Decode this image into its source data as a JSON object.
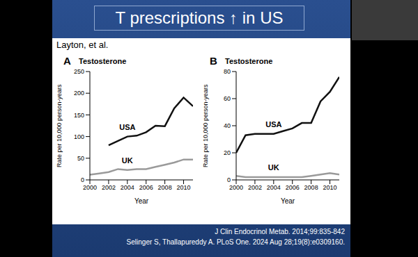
{
  "slide": {
    "title": "T prescriptions ↑ in US",
    "author": "Layton, et al.",
    "citations": [
      "J Clin Endocrinol Metab. 2014;99:835-842",
      "Selinger S, Thallapureddy A. PLoS One. 2024 Aug 28;19(8):e0309160."
    ]
  },
  "chart_data": [
    {
      "type": "line",
      "panel": "A",
      "title": "Testosterone",
      "x_label": "Year",
      "y_label": "Rate per 10,000 person-years",
      "x": [
        2000,
        2001,
        2002,
        2003,
        2004,
        2005,
        2006,
        2007,
        2008,
        2009,
        2010,
        2011
      ],
      "series": [
        {
          "name": "USA",
          "color": "#111111",
          "values": [
            null,
            null,
            80,
            90,
            100,
            102,
            110,
            125,
            124,
            165,
            190,
            170
          ]
        },
        {
          "name": "UK",
          "color": "#9a9a9a",
          "values": [
            12,
            15,
            18,
            25,
            23,
            25,
            25,
            30,
            35,
            40,
            47,
            47
          ]
        }
      ],
      "xlim": [
        2000,
        2011
      ],
      "xticks": [
        2000,
        2002,
        2004,
        2006,
        2008,
        2010
      ],
      "ylim": [
        0,
        250
      ],
      "yticks": [
        0,
        50,
        100,
        150,
        200,
        250
      ]
    },
    {
      "type": "line",
      "panel": "B",
      "title": "Testosterone",
      "x_label": "Year",
      "y_label": "Rate per 10,000 person-years",
      "x": [
        2000,
        2001,
        2002,
        2003,
        2004,
        2005,
        2006,
        2007,
        2008,
        2009,
        2010,
        2011
      ],
      "series": [
        {
          "name": "USA",
          "color": "#111111",
          "values": [
            20,
            33,
            34,
            34,
            34,
            36,
            38,
            42,
            42,
            58,
            65,
            76
          ]
        },
        {
          "name": "UK",
          "color": "#9a9a9a",
          "values": [
            3,
            2,
            2,
            2,
            2,
            2,
            2,
            2,
            3,
            4,
            5,
            4
          ]
        }
      ],
      "xlim": [
        2000,
        2011
      ],
      "xticks": [
        2000,
        2002,
        2004,
        2006,
        2008,
        2010
      ],
      "ylim": [
        0,
        80
      ],
      "yticks": [
        0,
        20,
        40,
        60,
        80
      ]
    }
  ]
}
